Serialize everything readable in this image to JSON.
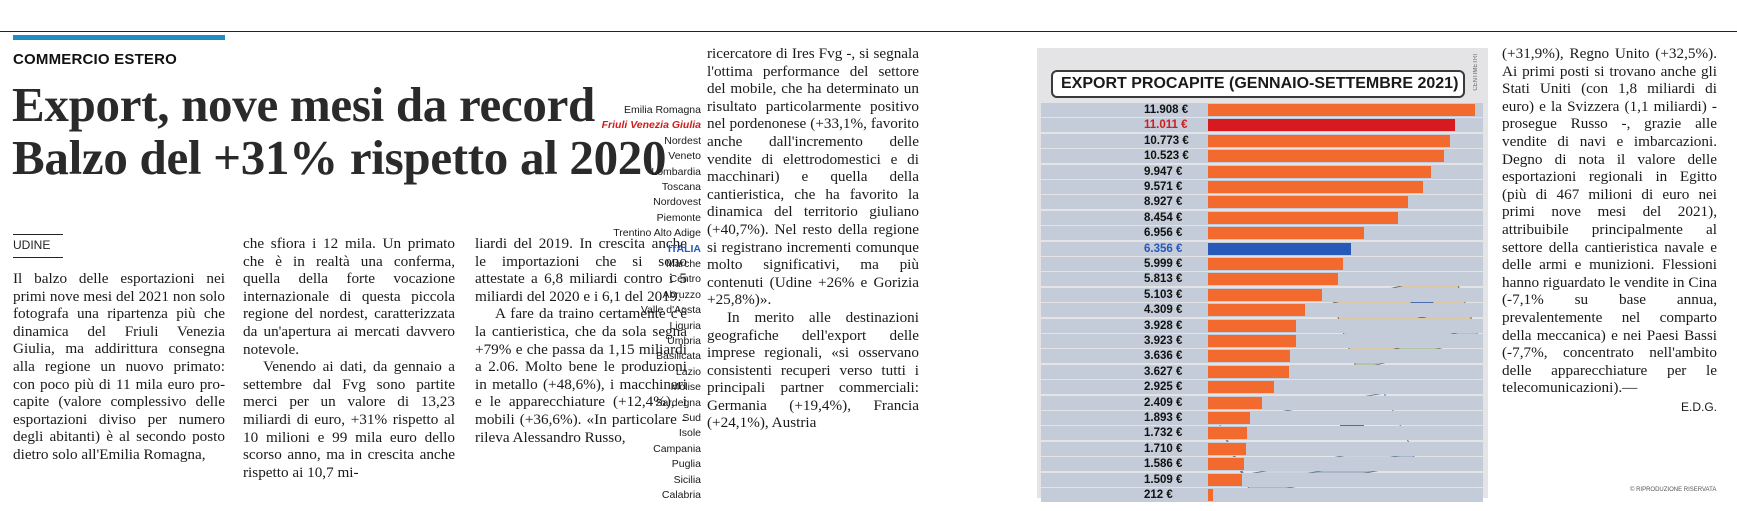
{
  "section": "COMMERCIO ESTERO",
  "headline": {
    "line1": "Export, nove mesi da record",
    "line2": "Balzo del +31% rispetto al 2020"
  },
  "dateline": "UDINE",
  "col1": "Il balzo delle esportazioni nei primi nove mesi del 2021 non solo fotografa una ripartenza più che dinamica del Friuli Venezia Giulia, ma addirittura consegna alla regione un nuovo primato: con poco più di 11 mila euro pro-capite (valore complessivo delle esportazioni diviso per numero degli abitanti) è al secondo posto dietro solo all'Emilia Romagna,",
  "col2_p1": "che sfiora i 12 mila. Un primato che è in realtà una conferma, quella della forte vocazione internazionale di questa piccola regione del nordest, caratterizzata da un'apertura ai mercati davvero notevole.",
  "col2_p2": "Venendo ai dati, da gennaio a settembre dal Fvg sono partite merci per un valore di 13,23 miliardi di euro, +31% rispetto al 10 milioni e 99 mila euro dello scorso anno, ma in crescita anche rispetto ai 10,7 mi-",
  "col3_p1": "liardi del 2019. In crescita anche le importazioni che si sono attestate a 6,8 miliardi contro i 5 miliardi del 2020 e i 6,1 del 2019.",
  "col3_p2": "A fare da traino certamente c'è la cantieristica, che da sola segna +79% e che passa da 1,15 miliardi a 2.06. Molto bene le produzioni in metallo (+48,6%), i macchinari e le apparecchiature (+12,4%), i mobili (+36,6%). «In particolare - rileva Alessandro Russo,",
  "col4_p1": "ricercatore di Ires Fvg -, si segnala l'ottima performance del settore del mobile, che ha determinato un risultato particolarmente positivo nel pordenonese (+33,1%, favorito anche dall'incremento delle vendite di elettrodomestici e di macchinari) e quella della cantieristica, che ha favorito la dinamica del territorio giuliano (+40,7%). Nel resto della regione si registrano incrementi comunque molto significativi, ma più contenuti (Udine +26% e Gorizia +25,8%)».",
  "col4_p2": "In merito alle destinazioni geografiche dell'export delle imprese regionali, «si osservano consistenti recuperi verso tutti i principali partner commerciali: Germania (+19,4%), Francia (+24,1%), Austria",
  "col5": "(+31,9%), Regno Unito (+32,5%). Ai primi posti si trovano anche gli Stati Uniti (con 1,8 miliardi di euro) e la Svizzera (1,1 miliardi) - prosegue Russo -, grazie alle vendite di navi e imbarcazioni. Degno di nota il valore delle esportazioni regionali in Egitto (più di 467 milioni di euro nei primi nove mesi del 2021), attribuibile principalmente al settore della cantieristica navale e delle armi e munizioni. Flessioni hanno riguardato le vendite in Cina (-7,1% su base annua, prevalentemente nel comparto della meccanica) e nei Paesi Bassi (-7,7%, concentrato nell'ambito delle apparecchiature per le telecomunicazioni).—",
  "signature": "E.D.G.",
  "credit": "© RIPRODUZIONE RISERVATA",
  "graphic": {
    "title": "EXPORT PROCAPITE (GENNAIO-SETTEMBRE 2021)",
    "source_credit": "CENTIMETRI",
    "colors": {
      "bar": "#f26a2e",
      "highlight": "#d71920",
      "italia": "#2659b8",
      "band": "#c3ccd8"
    }
  },
  "chart_data": {
    "type": "bar",
    "orientation": "horizontal",
    "title": "EXPORT PROCAPITE (GENNAIO-SETTEMBRE 2021)",
    "unit": "€",
    "categories": [
      "Emilia Romagna",
      "Friuli Venezia Giulia",
      "Nordest",
      "Veneto",
      "Lombardia",
      "Toscana",
      "Nordovest",
      "Piemonte",
      "Trentino Alto Adige",
      "ITALIA",
      "Marche",
      "Centro",
      "Abruzzo",
      "Valle d'Aosta",
      "Liguria",
      "Umbria",
      "Basilicata",
      "Lazio",
      "Molise",
      "Sardegna",
      "Sud",
      "Isole",
      "Campania",
      "Puglia",
      "Sicilia",
      "Calabria"
    ],
    "values": [
      11908,
      11011,
      10773,
      10523,
      9947,
      9571,
      8927,
      8454,
      6956,
      6356,
      5999,
      5813,
      5103,
      4309,
      3928,
      3923,
      3636,
      3627,
      2925,
      2409,
      1893,
      1732,
      1710,
      1586,
      1509,
      212
    ],
    "labels": [
      "11.908 €",
      "11.011 €",
      "10.773 €",
      "10.523 €",
      "9.947 €",
      "9.571 €",
      "8.927 €",
      "8.454 €",
      "6.956 €",
      "6.356 €",
      "5.999 €",
      "5.813 €",
      "5.103 €",
      "4.309 €",
      "3.928 €",
      "3.923 €",
      "3.636 €",
      "3.627 €",
      "2.925 €",
      "2.409 €",
      "1.893 €",
      "1.732 €",
      "1.710 €",
      "1.586 €",
      "1.509 €",
      "212 €"
    ],
    "highlight": [
      "Friuli Venezia Giulia"
    ],
    "reference": [
      "ITALIA"
    ],
    "xlim": [
      0,
      11908
    ]
  }
}
